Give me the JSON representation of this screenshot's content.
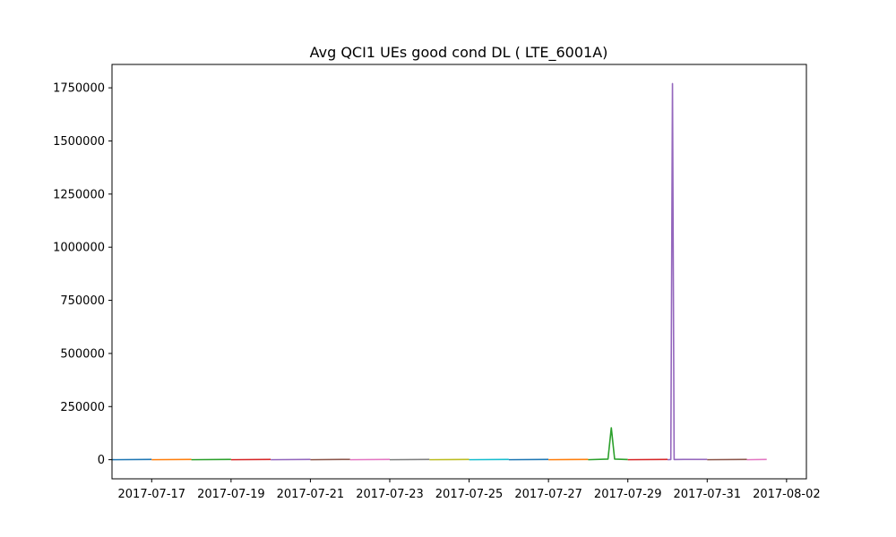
{
  "chart_data": {
    "type": "line",
    "title": "Avg QCI1 UEs good cond DL ( LTE_6001A)",
    "xlabel": "",
    "ylabel": "",
    "x_axis": {
      "type": "date",
      "range": [
        "2017-07-16T00:00",
        "2017-08-02T12:00"
      ],
      "ticks": [
        "2017-07-17",
        "2017-07-19",
        "2017-07-21",
        "2017-07-23",
        "2017-07-25",
        "2017-07-27",
        "2017-07-29",
        "2017-07-31",
        "2017-08-02"
      ]
    },
    "y_axis": {
      "range": [
        -90000,
        1860000
      ],
      "ticks": [
        0,
        250000,
        500000,
        750000,
        1000000,
        1250000,
        1500000,
        1750000
      ]
    },
    "grid": false,
    "legend": "none",
    "series": [
      {
        "color": "#1f77b4",
        "points": [
          [
            "2017-07-16T00:00",
            0
          ],
          [
            "2017-07-17T00:00",
            1500
          ]
        ]
      },
      {
        "color": "#ff7f0e",
        "points": [
          [
            "2017-07-17T00:00",
            0
          ],
          [
            "2017-07-18T00:00",
            1500
          ]
        ]
      },
      {
        "color": "#2ca02c",
        "points": [
          [
            "2017-07-18T00:00",
            0
          ],
          [
            "2017-07-19T00:00",
            1500
          ]
        ]
      },
      {
        "color": "#d62728",
        "points": [
          [
            "2017-07-19T00:00",
            0
          ],
          [
            "2017-07-20T00:00",
            1500
          ]
        ]
      },
      {
        "color": "#9467bd",
        "points": [
          [
            "2017-07-20T00:00",
            0
          ],
          [
            "2017-07-21T00:00",
            1500
          ]
        ]
      },
      {
        "color": "#8c564b",
        "points": [
          [
            "2017-07-21T00:00",
            0
          ],
          [
            "2017-07-22T00:00",
            1500
          ]
        ]
      },
      {
        "color": "#e377c2",
        "points": [
          [
            "2017-07-22T00:00",
            0
          ],
          [
            "2017-07-23T00:00",
            1500
          ]
        ]
      },
      {
        "color": "#7f7f7f",
        "points": [
          [
            "2017-07-23T00:00",
            0
          ],
          [
            "2017-07-24T00:00",
            1500
          ]
        ]
      },
      {
        "color": "#bcbd22",
        "points": [
          [
            "2017-07-24T00:00",
            0
          ],
          [
            "2017-07-25T00:00",
            1500
          ]
        ]
      },
      {
        "color": "#17becf",
        "points": [
          [
            "2017-07-25T00:00",
            0
          ],
          [
            "2017-07-26T00:00",
            1500
          ]
        ]
      },
      {
        "color": "#1f77b4",
        "points": [
          [
            "2017-07-26T00:00",
            0
          ],
          [
            "2017-07-27T00:00",
            1500
          ]
        ]
      },
      {
        "color": "#ff7f0e",
        "points": [
          [
            "2017-07-27T00:00",
            0
          ],
          [
            "2017-07-28T00:00",
            1500
          ]
        ]
      },
      {
        "color": "#2ca02c",
        "points": [
          [
            "2017-07-28T00:00",
            0
          ],
          [
            "2017-07-28T12:00",
            3000
          ],
          [
            "2017-07-28T14:00",
            150000
          ],
          [
            "2017-07-28T16:00",
            3000
          ],
          [
            "2017-07-29T00:00",
            1000
          ]
        ]
      },
      {
        "color": "#d62728",
        "points": [
          [
            "2017-07-29T00:00",
            0
          ],
          [
            "2017-07-30T00:00",
            1500
          ]
        ]
      },
      {
        "color": "#9467bd",
        "points": [
          [
            "2017-07-30T00:00",
            0
          ],
          [
            "2017-07-30T02:00",
            1000
          ],
          [
            "2017-07-30T03:00",
            1770000
          ],
          [
            "2017-07-30T04:00",
            1000
          ],
          [
            "2017-07-31T00:00",
            1500
          ]
        ]
      },
      {
        "color": "#8c564b",
        "points": [
          [
            "2017-07-31T00:00",
            0
          ],
          [
            "2017-08-01T00:00",
            1500
          ]
        ]
      },
      {
        "color": "#e377c2",
        "points": [
          [
            "2017-08-01T00:00",
            0
          ],
          [
            "2017-08-01T12:00",
            1500
          ]
        ]
      }
    ]
  }
}
